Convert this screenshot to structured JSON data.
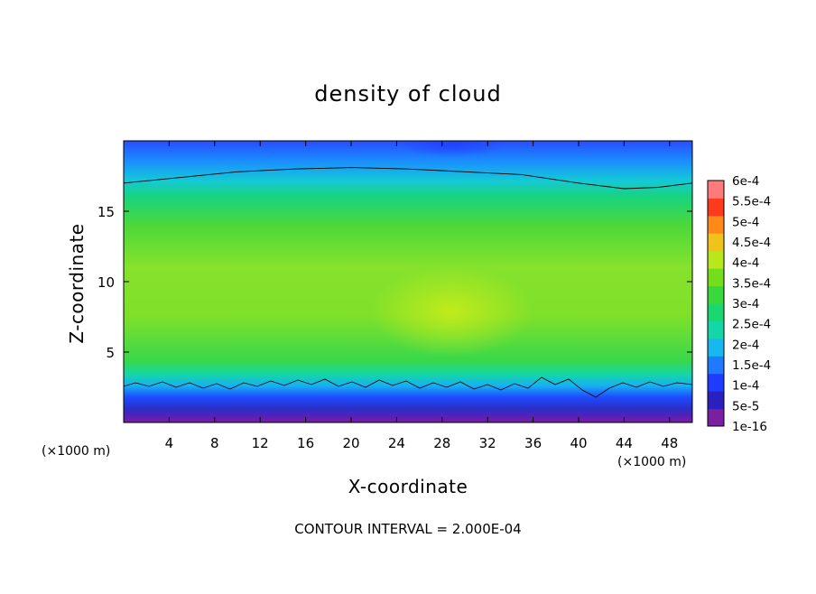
{
  "chart_data": {
    "type": "heatmap",
    "title": "density of cloud",
    "xlabel": "X-coordinate",
    "ylabel": "Z-coordinate",
    "x_unit_label": "(×1000 m)",
    "x_unit_label_right": "(×1000 m)",
    "xlim": [
      0,
      50
    ],
    "ylim": [
      0,
      20
    ],
    "x_ticks": [
      4,
      8,
      12,
      16,
      20,
      24,
      28,
      32,
      36,
      40,
      44,
      48
    ],
    "y_ticks": [
      5,
      10,
      15
    ],
    "footer": "CONTOUR INTERVAL = 2.000E-04",
    "colorbar": {
      "levels": [
        "1e-16",
        "5e-5",
        "1e-4",
        "1.5e-4",
        "2e-4",
        "2.5e-4",
        "3e-4",
        "3.5e-4",
        "4e-4",
        "4.5e-4",
        "5e-4",
        "5.5e-4",
        "6e-4"
      ],
      "colors": [
        "#7a1fa0",
        "#2a1fbf",
        "#1e3cff",
        "#1e7bff",
        "#17b8f0",
        "#14d6a8",
        "#19d870",
        "#3ad83a",
        "#74de1c",
        "#b8e81a",
        "#f0c21a",
        "#ff8a1a",
        "#ff3a1a",
        "#ff7a7a"
      ]
    },
    "contour_line_z_at_x": {
      "x": [
        0,
        5,
        10,
        15,
        20,
        25,
        30,
        35,
        40,
        44,
        47,
        50
      ],
      "z": [
        17.0,
        17.4,
        17.8,
        18.0,
        18.1,
        18.0,
        17.8,
        17.6,
        17.0,
        16.6,
        16.7,
        17.0
      ]
    }
  }
}
